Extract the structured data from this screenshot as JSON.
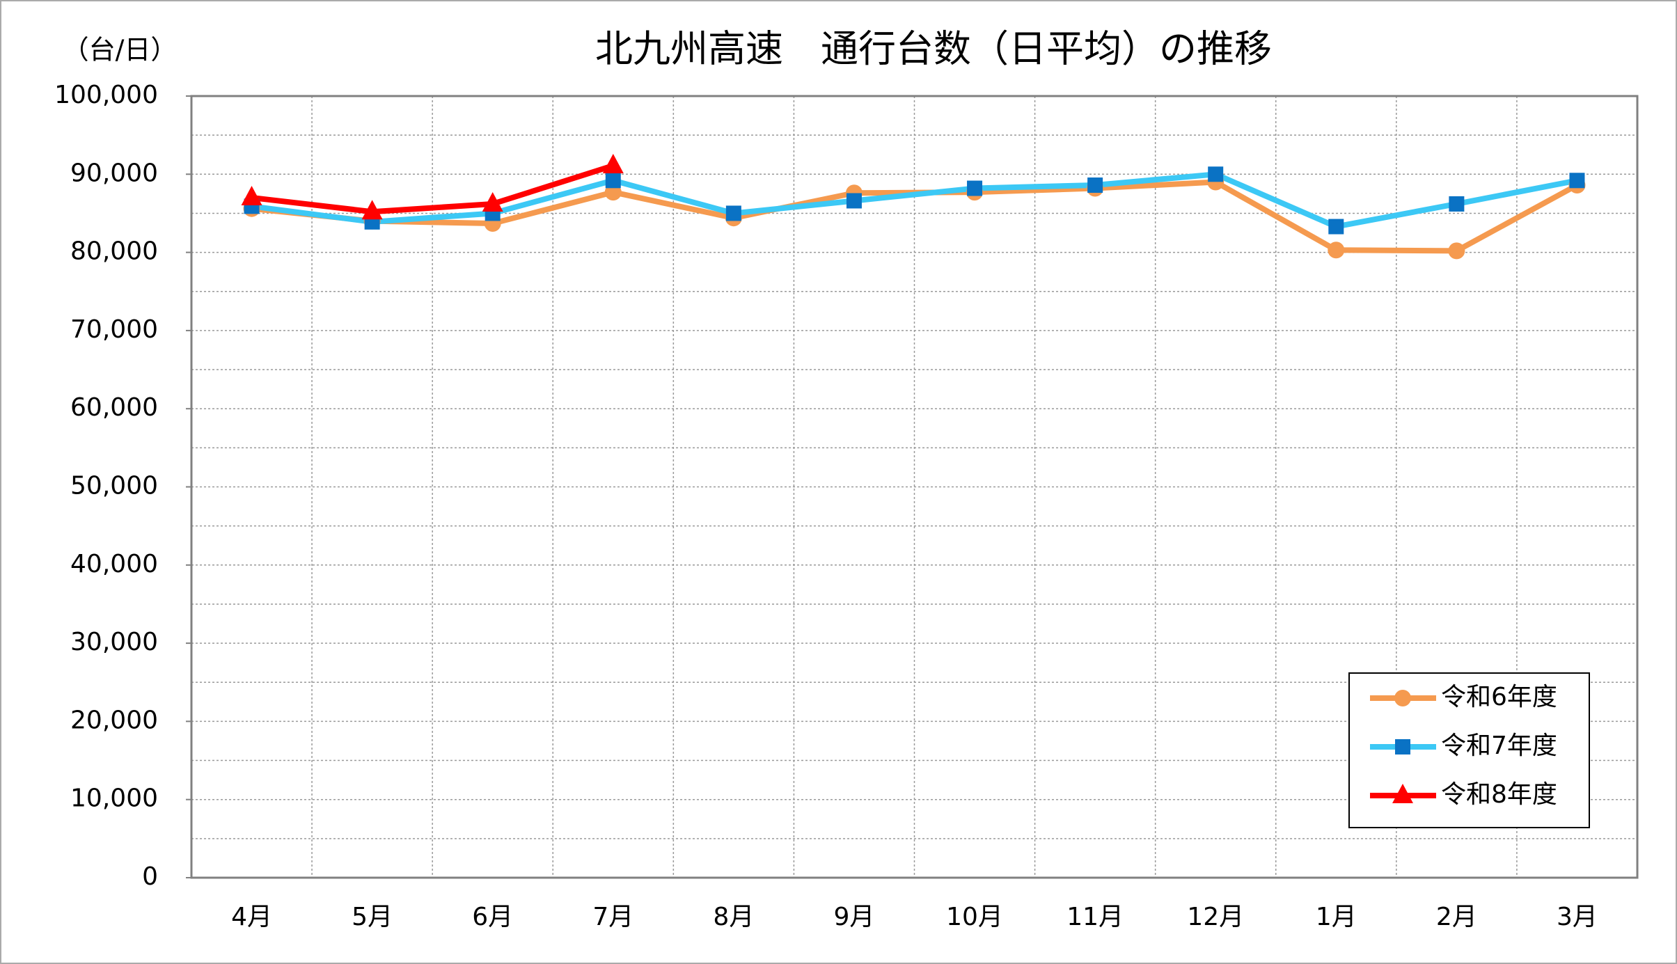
{
  "chart_data": {
    "type": "line",
    "title": "北九州高速　通行台数（日平均）の推移",
    "y_label": "（台/日）",
    "categories": [
      "4月",
      "5月",
      "6月",
      "7月",
      "8月",
      "9月",
      "10月",
      "11月",
      "12月",
      "1月",
      "2月",
      "3月"
    ],
    "series": [
      {
        "name": "令和6年度",
        "color": "#f59a4f",
        "marker": "circle",
        "marker_color": "#f59a4f",
        "values": [
          85600,
          84000,
          83700,
          87700,
          84400,
          87600,
          87700,
          88200,
          89000,
          80300,
          80200,
          88600
        ]
      },
      {
        "name": "令和7年度",
        "color": "#3cc8f5",
        "marker": "square",
        "marker_color": "#0a72c4",
        "values": [
          85900,
          83900,
          85000,
          89200,
          85000,
          86600,
          88200,
          88600,
          90000,
          83300,
          86200,
          89200
        ]
      },
      {
        "name": "令和8年度",
        "color": "#ff0000",
        "marker": "triangle",
        "marker_color": "#ff0000",
        "values": [
          87000,
          85200,
          86200,
          91100,
          null,
          null,
          null,
          null,
          null,
          null,
          null,
          null
        ]
      }
    ],
    "ylim": [
      0,
      100000
    ],
    "yticks": [
      0,
      {
        "value": 10000,
        "label": "10,000"
      },
      {
        "value": 20000,
        "label": "20,000"
      },
      {
        "value": 30000,
        "label": "30,000"
      },
      {
        "value": 40000,
        "label": "40,000"
      },
      {
        "value": 50000,
        "label": "50,000"
      },
      {
        "value": 60000,
        "label": "60,000"
      },
      {
        "value": 70000,
        "label": "70,000"
      },
      {
        "value": 80000,
        "label": "80,000"
      },
      {
        "value": 90000,
        "label": "90,000"
      },
      {
        "value": 100000,
        "label": "100,000"
      }
    ],
    "y_minor_ticks": [
      5000,
      15000,
      25000,
      35000,
      45000,
      55000,
      65000,
      75000,
      85000,
      95000
    ],
    "grid": true,
    "legend": "lower right"
  }
}
